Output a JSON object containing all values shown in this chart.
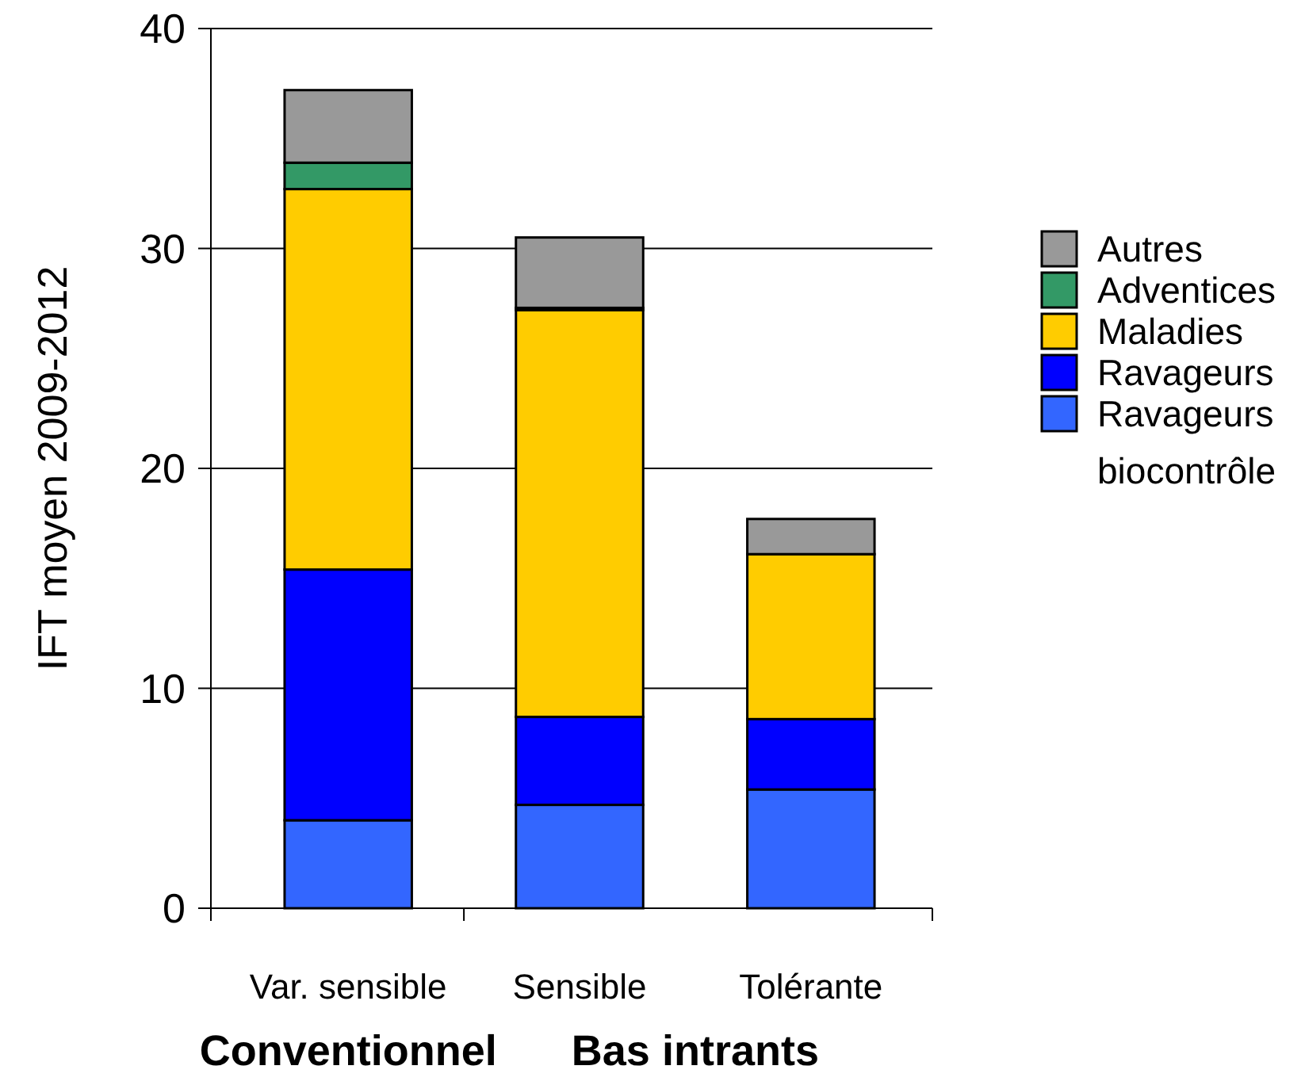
{
  "chart_data": {
    "type": "bar",
    "stacked": true,
    "ylabel": "IFT moyen 2009-2012",
    "categories": [
      "Var. sensible",
      "Sensible",
      "Tolérante"
    ],
    "series": [
      {
        "name": "Ravageurs biocontrôle",
        "color": "#3366ff",
        "values": [
          4.0,
          4.7,
          5.4
        ]
      },
      {
        "name": "Ravageurs",
        "color": "#0000ff",
        "values": [
          11.4,
          4.0,
          3.2
        ]
      },
      {
        "name": "Maladies",
        "color": "#ffcc00",
        "values": [
          17.3,
          18.5,
          7.5
        ]
      },
      {
        "name": "Adventices",
        "color": "#339966",
        "values": [
          1.2,
          0.1,
          null
        ]
      },
      {
        "name": "Autres",
        "color": "#999999",
        "values": [
          3.3,
          3.2,
          1.6
        ]
      }
    ],
    "ylim": [
      0,
      40
    ],
    "yticks": [
      0,
      10,
      20,
      30,
      40
    ],
    "grid": "y",
    "legend": "right",
    "annotations": [
      "Conventionnel",
      "Bas intrants"
    ]
  }
}
